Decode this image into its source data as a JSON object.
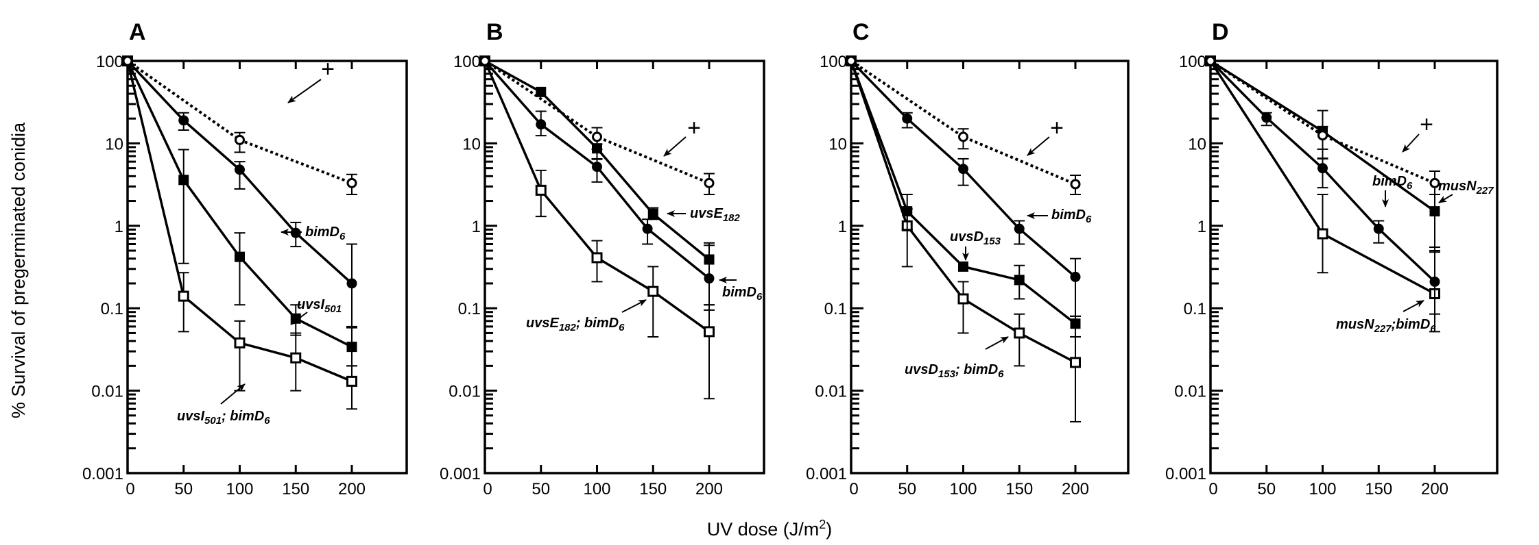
{
  "figure": {
    "y_axis_title": "% Survival of pregerminated conidia",
    "x_axis_title": "UV dose (J/m",
    "x_axis_title_sup": "2",
    "x_axis_title_end": ")"
  },
  "chart_data": [
    {
      "type": "line",
      "panel": "A",
      "title": "A",
      "xlabel": "UV dose (J/m2)",
      "ylabel": "% Survival of pregerminated conidia",
      "yscale": "log",
      "ylim": [
        0.001,
        100
      ],
      "xlim": [
        0,
        250
      ],
      "x_ticks": [
        0,
        50,
        100,
        150,
        200
      ],
      "y_ticks": [
        0.001,
        0.01,
        0.1,
        1,
        10,
        100
      ],
      "y_tick_labels": [
        "0.001",
        "0.01",
        "0.1",
        "1",
        "10",
        "100"
      ],
      "series": [
        {
          "name": "+",
          "marker": "open-circle",
          "line": "dotted",
          "x": [
            0,
            100,
            200
          ],
          "y": [
            100,
            11,
            3.3
          ],
          "err_low": [
            null,
            7.8,
            2.4
          ],
          "err_high": [
            null,
            13.5,
            4.2
          ]
        },
        {
          "name": "bimD6",
          "marker": "filled-circle",
          "line": "solid",
          "x": [
            0,
            50,
            100,
            150,
            200
          ],
          "y": [
            100,
            19,
            4.8,
            0.82,
            0.2
          ],
          "err_low": [
            null,
            14.5,
            2.8,
            0.56,
            0.06
          ],
          "err_high": [
            null,
            23.5,
            6,
            1.1,
            0.6
          ]
        },
        {
          "name": "uvsI501",
          "marker": "filled-square",
          "line": "solid",
          "x": [
            0,
            50,
            100,
            150,
            200
          ],
          "y": [
            100,
            3.6,
            0.42,
            0.075,
            0.034
          ],
          "err_low": [
            null,
            0.35,
            0.11,
            0.047,
            0.02
          ],
          "err_high": [
            null,
            8.4,
            0.82,
            0.11,
            0.058
          ]
        },
        {
          "name": "uvsI501; bimD6",
          "marker": "open-square",
          "line": "solid",
          "x": [
            0,
            50,
            100,
            150,
            200
          ],
          "y": [
            100,
            0.14,
            0.038,
            0.025,
            0.013
          ],
          "err_low": [
            null,
            0.052,
            0.01,
            0.01,
            0.006
          ],
          "err_high": [
            null,
            0.27,
            0.07,
            0.05,
            0.02
          ]
        }
      ],
      "annotations": [
        {
          "text": "+",
          "target": "+"
        },
        {
          "text": "bimD",
          "sub": "6",
          "target": "bimD6"
        },
        {
          "text": "uvsI",
          "sub": "501",
          "target": "uvsI501"
        },
        {
          "text": "uvsI",
          "sub": "501",
          "text2": "; bimD",
          "sub2": "6",
          "target": "uvsI501; bimD6"
        }
      ]
    },
    {
      "type": "line",
      "panel": "B",
      "title": "B",
      "xlabel": "UV dose (J/m2)",
      "ylabel": "% Survival of pregerminated conidia",
      "yscale": "log",
      "ylim": [
        0.001,
        100
      ],
      "xlim": [
        0,
        250
      ],
      "x_ticks": [
        0,
        50,
        100,
        150,
        200
      ],
      "y_ticks": [
        0.001,
        0.01,
        0.1,
        1,
        10,
        100
      ],
      "y_tick_labels": [
        "0.001",
        "0.01",
        "0.1",
        "1",
        "10",
        "100"
      ],
      "series": [
        {
          "name": "+",
          "marker": "open-circle",
          "line": "dotted",
          "x": [
            0,
            100,
            200
          ],
          "y": [
            100,
            12,
            3.3
          ],
          "err_low": [
            null,
            8.5,
            2.4
          ],
          "err_high": [
            null,
            15.5,
            4.3
          ]
        },
        {
          "name": "bimD6",
          "marker": "filled-circle",
          "line": "solid",
          "x": [
            0,
            50,
            100,
            145,
            200
          ],
          "y": [
            100,
            17,
            5.2,
            0.92,
            0.23
          ],
          "err_low": [
            null,
            12.4,
            3.4,
            0.6,
            0.095
          ],
          "err_high": [
            null,
            24.5,
            6.4,
            1.2,
            0.58
          ]
        },
        {
          "name": "uvsE182",
          "marker": "filled-square",
          "line": "solid",
          "x": [
            0,
            50,
            100,
            150,
            200
          ],
          "y": [
            100,
            42,
            8.7,
            1.4,
            0.39
          ],
          "err_low": [
            null,
            null,
            6.5,
            1.2,
            0.11
          ],
          "err_high": [
            null,
            null,
            9.8,
            1.65,
            0.62
          ]
        },
        {
          "name": "uvsE182; bimD6",
          "marker": "open-square",
          "line": "solid",
          "x": [
            0,
            50,
            100,
            150,
            200
          ],
          "y": [
            100,
            2.7,
            0.41,
            0.16,
            0.052
          ],
          "err_low": [
            null,
            1.3,
            0.21,
            0.045,
            0.008
          ],
          "err_high": [
            null,
            4.7,
            0.66,
            0.32,
            0.11
          ]
        }
      ],
      "annotations": [
        {
          "text": "+",
          "target": "+"
        },
        {
          "text": "uvsE",
          "sub": "182",
          "target": "uvsE182"
        },
        {
          "text": "bimD",
          "sub": "6",
          "target": "bimD6"
        },
        {
          "text": "uvsE",
          "sub": "182",
          "text2": "; bimD",
          "sub2": "6",
          "target": "uvsE182; bimD6"
        }
      ]
    },
    {
      "type": "line",
      "panel": "C",
      "title": "C",
      "xlabel": "UV dose (J/m2)",
      "ylabel": "% Survival of pregerminated conidia",
      "yscale": "log",
      "ylim": [
        0.001,
        100
      ],
      "xlim": [
        0,
        250
      ],
      "x_ticks": [
        0,
        50,
        100,
        150,
        200
      ],
      "y_ticks": [
        0.001,
        0.01,
        0.1,
        1,
        10,
        100
      ],
      "y_tick_labels": [
        "0.001",
        "0.01",
        "0.1",
        "1",
        "10",
        "100"
      ],
      "series": [
        {
          "name": "+",
          "marker": "open-circle",
          "line": "dotted",
          "x": [
            0,
            100,
            200
          ],
          "y": [
            100,
            12,
            3.2
          ],
          "err_low": [
            null,
            8.6,
            2.4
          ],
          "err_high": [
            null,
            15,
            4.1
          ]
        },
        {
          "name": "bimD6",
          "marker": "filled-circle",
          "line": "solid",
          "x": [
            0,
            50,
            100,
            150,
            200
          ],
          "y": [
            100,
            20,
            4.9,
            0.92,
            0.24
          ],
          "err_low": [
            null,
            15.5,
            3.1,
            0.6,
            0.08
          ],
          "err_high": [
            null,
            23.5,
            6.5,
            1.15,
            0.4
          ]
        },
        {
          "name": "uvsD153",
          "marker": "filled-square",
          "line": "solid",
          "x": [
            0,
            50,
            100,
            150,
            200
          ],
          "y": [
            100,
            1.5,
            0.32,
            0.22,
            0.065
          ],
          "err_low": [
            null,
            0.9,
            null,
            0.13,
            0.045
          ],
          "err_high": [
            null,
            2.4,
            null,
            0.33,
            0.08
          ]
        },
        {
          "name": "uvsD153; bimD6",
          "marker": "open-square",
          "line": "solid",
          "x": [
            0,
            50,
            100,
            150,
            200
          ],
          "y": [
            100,
            1.0,
            0.13,
            0.05,
            0.022
          ],
          "err_low": [
            null,
            0.32,
            0.05,
            0.02,
            0.0042
          ],
          "err_high": [
            null,
            1.6,
            0.21,
            0.085,
            0.045
          ]
        }
      ],
      "annotations": [
        {
          "text": "+",
          "target": "+"
        },
        {
          "text": "bimD",
          "sub": "6",
          "target": "bimD6"
        },
        {
          "text": "uvsD",
          "sub": "153",
          "target": "uvsD153"
        },
        {
          "text": "uvsD",
          "sub": "153",
          "text2": "; bimD",
          "sub2": "6",
          "target": "uvsD153; bimD6"
        }
      ]
    },
    {
      "type": "line",
      "panel": "D",
      "title": "D",
      "xlabel": "UV dose (J/m2)",
      "ylabel": "% Survival of pregerminated conidia",
      "yscale": "log",
      "ylim": [
        0.001,
        100
      ],
      "xlim": [
        0,
        250
      ],
      "x_ticks": [
        0,
        50,
        100,
        150,
        200
      ],
      "y_ticks": [
        0.001,
        0.01,
        0.1,
        1,
        10,
        100
      ],
      "y_tick_labels": [
        "0.001",
        "0.01",
        "0.1",
        "1",
        "10",
        "100"
      ],
      "series": [
        {
          "name": "+",
          "marker": "open-circle",
          "line": "dotted",
          "x": [
            0,
            100,
            200
          ],
          "y": [
            100,
            12.5,
            3.3
          ],
          "err_low": [
            null,
            8.5,
            2.4
          ],
          "err_high": [
            null,
            16,
            4.6
          ]
        },
        {
          "name": "bimD6",
          "marker": "filled-circle",
          "line": "solid",
          "x": [
            0,
            50,
            100,
            150,
            200
          ],
          "y": [
            100,
            20.5,
            5,
            0.92,
            0.21
          ],
          "err_low": [
            null,
            16.5,
            2.9,
            0.62,
            0.085
          ],
          "err_high": [
            null,
            23.5,
            6.6,
            1.15,
            0.55
          ]
        },
        {
          "name": "musN227",
          "marker": "filled-square",
          "line": "solid",
          "x": [
            0,
            100,
            200
          ],
          "y": [
            100,
            14,
            1.5
          ],
          "err_low": [
            null,
            6.5,
            0.5
          ],
          "err_high": [
            null,
            25,
            4.6
          ]
        },
        {
          "name": "musN227; bimD6",
          "marker": "open-square",
          "line": "solid",
          "x": [
            0,
            100,
            200
          ],
          "y": [
            100,
            0.8,
            0.15
          ],
          "err_low": [
            null,
            0.27,
            0.052
          ],
          "err_high": [
            null,
            2.4,
            0.48
          ]
        }
      ],
      "annotations": [
        {
          "text": "+",
          "target": "+"
        },
        {
          "text": "bimD",
          "sub": "6",
          "target": "bimD6"
        },
        {
          "text": "musN",
          "sub": "227",
          "target": "musN227"
        },
        {
          "text": "musN",
          "sub": "227",
          "text2": ";bimD",
          "sub2": "6",
          "target": "musN227; bimD6"
        }
      ]
    }
  ]
}
